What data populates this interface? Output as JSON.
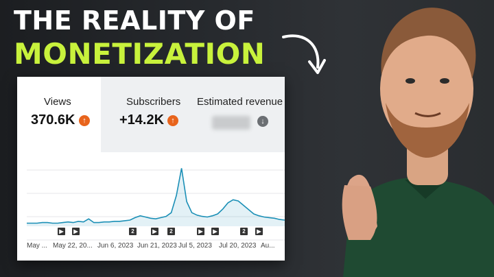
{
  "headline": {
    "line1": "THE REALITY OF",
    "line2": "MONETIZATION"
  },
  "metrics": [
    {
      "label": "Views",
      "value": "370.6K",
      "trend": "up"
    },
    {
      "label": "Subscribers",
      "value": "+14.2K",
      "trend": "up"
    },
    {
      "label": "Estimated revenue",
      "value": "",
      "trend": "down"
    }
  ],
  "x_labels": [
    "May ...",
    "May 22, 20...",
    "Jun 6, 2023",
    "Jun 21, 2023",
    "Jul 5, 2023",
    "Jul 20, 2023",
    "Au..."
  ],
  "markers": [
    {
      "type": "play",
      "glyph": "▶"
    },
    {
      "type": "play",
      "glyph": "▶"
    },
    {
      "type": "count",
      "glyph": "2"
    },
    {
      "type": "play",
      "glyph": "▶"
    },
    {
      "type": "count",
      "glyph": "2"
    },
    {
      "type": "play",
      "glyph": "▶"
    },
    {
      "type": "play",
      "glyph": "▶"
    },
    {
      "type": "count",
      "glyph": "2"
    },
    {
      "type": "play",
      "glyph": "▶"
    }
  ],
  "colors": {
    "accent_green": "#c8f23c",
    "trend_up": "#e8641c",
    "line": "#1a8fb6"
  },
  "chart_data": {
    "type": "area",
    "series": [
      {
        "values": [
          5,
          5,
          5,
          6,
          6,
          5,
          5,
          6,
          7,
          6,
          8,
          7,
          12,
          6,
          6,
          7,
          7,
          8,
          8,
          9,
          10,
          14,
          17,
          15,
          13,
          12,
          14,
          16,
          22,
          50,
          94,
          40,
          22,
          18,
          16,
          15,
          17,
          20,
          28,
          38,
          43,
          41,
          34,
          27,
          20,
          17,
          15,
          14,
          13,
          11,
          10
        ]
      }
    ],
    "xlabel": "",
    "ylabel": "",
    "grid": true
  }
}
